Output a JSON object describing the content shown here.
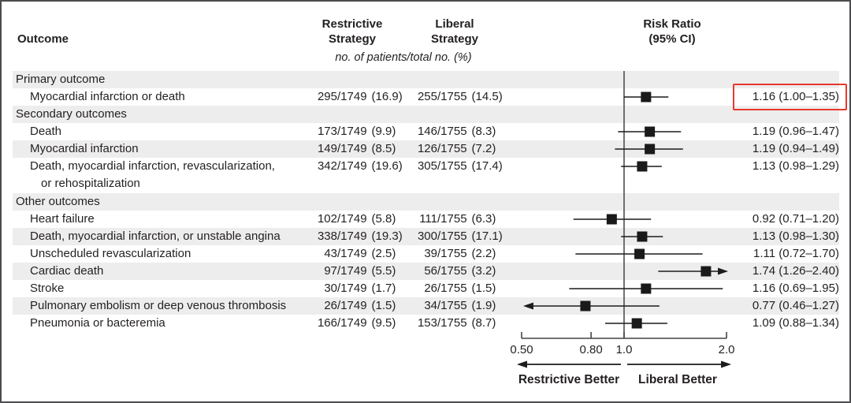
{
  "header": {
    "outcome": "Outcome",
    "restrictive_line1": "Restrictive",
    "restrictive_line2": "Strategy",
    "liberal_line1": "Liberal",
    "liberal_line2": "Strategy",
    "units": "no. of patients/total no. (%)",
    "rr_line1": "Risk Ratio",
    "rr_line2": "(95% CI)"
  },
  "rows": [
    {
      "type": "section",
      "shaded": true,
      "label": "Primary outcome"
    },
    {
      "type": "item",
      "shaded": false,
      "label": "Myocardial infarction or death",
      "restrictive": {
        "n": "295",
        "d": "/1749",
        "p": "(16.9)"
      },
      "liberal": {
        "n": "255",
        "d": "/1755",
        "p": "(14.5)"
      },
      "rr_text": "1.16 (1.00–1.35)"
    },
    {
      "type": "section",
      "shaded": true,
      "label": "Secondary outcomes"
    },
    {
      "type": "item",
      "shaded": false,
      "label": "Death",
      "restrictive": {
        "n": "173",
        "d": "/1749",
        "p": "(9.9)"
      },
      "liberal": {
        "n": "146",
        "d": "/1755",
        "p": "(8.3)"
      },
      "rr_text": "1.19 (0.96–1.47)"
    },
    {
      "type": "item",
      "shaded": true,
      "label": "Myocardial infarction",
      "restrictive": {
        "n": "149",
        "d": "/1749",
        "p": "(8.5)"
      },
      "liberal": {
        "n": "126",
        "d": "/1755",
        "p": "(7.2)"
      },
      "rr_text": "1.19 (0.94–1.49)"
    },
    {
      "type": "item2",
      "shaded": false,
      "label": "Death, myocardial infarction, revascularization,",
      "label2": "or rehospitalization",
      "restrictive": {
        "n": "342",
        "d": "/1749",
        "p": "(19.6)"
      },
      "liberal": {
        "n": "305",
        "d": "/1755",
        "p": "(17.4)"
      },
      "rr_text": "1.13 (0.98–1.29)"
    },
    {
      "type": "section",
      "shaded": true,
      "label": "Other outcomes"
    },
    {
      "type": "item",
      "shaded": false,
      "label": "Heart failure",
      "restrictive": {
        "n": "102",
        "d": "/1749",
        "p": "(5.8)"
      },
      "liberal": {
        "n": "111",
        "d": "/1755",
        "p": "(6.3)"
      },
      "rr_text": "0.92 (0.71–1.20)"
    },
    {
      "type": "item",
      "shaded": true,
      "label": "Death, myocardial infarction, or unstable angina",
      "restrictive": {
        "n": "338",
        "d": "/1749",
        "p": "(19.3)"
      },
      "liberal": {
        "n": "300",
        "d": "/1755",
        "p": "(17.1)"
      },
      "rr_text": "1.13 (0.98–1.30)"
    },
    {
      "type": "item",
      "shaded": false,
      "label": "Unscheduled revascularization",
      "restrictive": {
        "n": "43",
        "d": "/1749",
        "p": "(2.5)"
      },
      "liberal": {
        "n": "39",
        "d": "/1755",
        "p": "(2.2)"
      },
      "rr_text": "1.11 (0.72–1.70)"
    },
    {
      "type": "item",
      "shaded": true,
      "label": "Cardiac death",
      "restrictive": {
        "n": "97",
        "d": "/1749",
        "p": "(5.5)"
      },
      "liberal": {
        "n": "56",
        "d": "/1755",
        "p": "(3.2)"
      },
      "rr_text": "1.74 (1.26–2.40)"
    },
    {
      "type": "item",
      "shaded": false,
      "label": "Stroke",
      "restrictive": {
        "n": "30",
        "d": "/1749",
        "p": "(1.7)"
      },
      "liberal": {
        "n": "26",
        "d": "/1755",
        "p": "(1.5)"
      },
      "rr_text": "1.16 (0.69–1.95)"
    },
    {
      "type": "item",
      "shaded": true,
      "label": "Pulmonary embolism or deep venous thrombosis",
      "restrictive": {
        "n": "26",
        "d": "/1749",
        "p": "(1.5)"
      },
      "liberal": {
        "n": "34",
        "d": "/1755",
        "p": "(1.9)"
      },
      "rr_text": "0.77 (0.46–1.27)"
    },
    {
      "type": "item",
      "shaded": false,
      "label": "Pneumonia or bacteremia",
      "restrictive": {
        "n": "166",
        "d": "/1749",
        "p": "(9.5)"
      },
      "liberal": {
        "n": "153",
        "d": "/1755",
        "p": "(8.7)"
      },
      "rr_text": "1.09 (0.88–1.34)"
    }
  ],
  "chart_data": {
    "type": "forest",
    "x_scale": "log",
    "xlim": [
      0.5,
      2.0
    ],
    "reference_value": 1.0,
    "ticks": [
      {
        "value": 0.5,
        "label": "0.50"
      },
      {
        "value": 0.8,
        "label": "0.80"
      },
      {
        "value": 1.0,
        "label": "1.0"
      },
      {
        "value": 2.0,
        "label": "2.0"
      }
    ],
    "direction_labels": {
      "left": "Restrictive Better",
      "right": "Liberal Better"
    },
    "series_label": "Risk Ratio (95% CI)",
    "points": [
      {
        "row_index": 1,
        "rr": 1.16,
        "lo": 1.0,
        "hi": 1.35
      },
      {
        "row_index": 3,
        "rr": 1.19,
        "lo": 0.96,
        "hi": 1.47
      },
      {
        "row_index": 4,
        "rr": 1.19,
        "lo": 0.94,
        "hi": 1.49
      },
      {
        "row_index": 5,
        "rr": 1.13,
        "lo": 0.98,
        "hi": 1.29
      },
      {
        "row_index": 7,
        "rr": 0.92,
        "lo": 0.71,
        "hi": 1.2
      },
      {
        "row_index": 8,
        "rr": 1.13,
        "lo": 0.98,
        "hi": 1.3
      },
      {
        "row_index": 9,
        "rr": 1.11,
        "lo": 0.72,
        "hi": 1.7
      },
      {
        "row_index": 10,
        "rr": 1.74,
        "lo": 1.26,
        "hi": 2.4
      },
      {
        "row_index": 11,
        "rr": 1.16,
        "lo": 0.69,
        "hi": 1.95
      },
      {
        "row_index": 12,
        "rr": 0.77,
        "lo": 0.46,
        "hi": 1.27
      },
      {
        "row_index": 13,
        "rr": 1.09,
        "lo": 0.88,
        "hi": 1.34
      }
    ],
    "highlighted_row_index": 1
  },
  "colors": {
    "accent_red": "#e8392f",
    "row_band": "#ededed",
    "text": "#231f20",
    "plot_stroke": "#444446"
  }
}
